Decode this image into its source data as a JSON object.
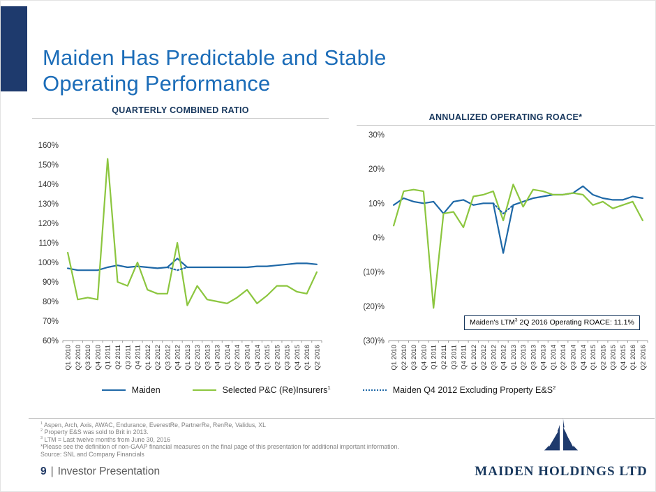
{
  "slide": {
    "title": "Maiden Has Predictable and Stable\nOperating Performance"
  },
  "chart_data": [
    {
      "type": "line",
      "title": "QUARTERLY COMBINED RATIO",
      "xlabel": "",
      "ylabel": "",
      "ylim": [
        60,
        160
      ],
      "grid": false,
      "legend_position": "shared-bottom",
      "categories": [
        "Q1 2010",
        "Q2 2010",
        "Q3 2010",
        "Q4 2010",
        "Q1 2011",
        "Q2 2011",
        "Q3 2011",
        "Q4 2011",
        "Q1 2012",
        "Q2 2012",
        "Q3 2012",
        "Q4 2012",
        "Q1 2013",
        "Q2 2013",
        "Q3 2013",
        "Q4 2013",
        "Q1 2014",
        "Q2 2014",
        "Q3 2014",
        "Q4 2014",
        "Q1 2015",
        "Q2 2015",
        "Q3 2015",
        "Q4 2015",
        "Q1 2016",
        "Q2 2016"
      ],
      "yticks": [
        {
          "v": 60,
          "label": "60%"
        },
        {
          "v": 70,
          "label": "70%"
        },
        {
          "v": 80,
          "label": "80%"
        },
        {
          "v": 90,
          "label": "90%"
        },
        {
          "v": 100,
          "label": "100%"
        },
        {
          "v": 110,
          "label": "110%"
        },
        {
          "v": 120,
          "label": "120%"
        },
        {
          "v": 130,
          "label": "130%"
        },
        {
          "v": 140,
          "label": "140%"
        },
        {
          "v": 150,
          "label": "150%"
        },
        {
          "v": 160,
          "label": "160%"
        }
      ],
      "series": [
        {
          "name": "Maiden",
          "color": "#1E68A7",
          "style": "solid",
          "values": [
            97,
            96,
            96,
            96,
            97.5,
            98.5,
            97.5,
            98,
            97.5,
            97,
            97.5,
            102,
            97.5,
            97.5,
            97.5,
            97.5,
            97.5,
            97.5,
            97.5,
            98,
            98,
            98.5,
            99,
            99.5,
            99.5,
            99
          ]
        },
        {
          "name": "Selected P&C (Re)Insurers",
          "color": "#8CC63F",
          "style": "solid",
          "values": [
            105,
            81,
            82,
            81,
            153,
            90,
            88,
            100,
            86,
            84,
            84,
            110,
            78,
            88,
            81,
            80,
            79,
            82,
            86,
            79,
            83,
            88,
            88,
            85,
            84,
            95
          ]
        },
        {
          "name": "Maiden Q4 2012 Excluding Property E&S",
          "color": "#1E68A7",
          "style": "dotted",
          "values": [
            null,
            null,
            null,
            null,
            null,
            null,
            null,
            null,
            null,
            null,
            97.5,
            96,
            97.5,
            null,
            null,
            null,
            null,
            null,
            null,
            null,
            null,
            null,
            null,
            null,
            null,
            null
          ]
        }
      ]
    },
    {
      "type": "line",
      "title": "ANNUALIZED OPERATING ROACE*",
      "xlabel": "",
      "ylabel": "",
      "ylim": [
        -30,
        30
      ],
      "grid": false,
      "legend_position": "shared-bottom",
      "categories": [
        "Q1 2010",
        "Q2 2010",
        "Q3 2010",
        "Q4 2010",
        "Q1 2011",
        "Q2 2011",
        "Q3 2011",
        "Q4 2011",
        "Q1 2012",
        "Q2 2012",
        "Q3 2012",
        "Q4 2012",
        "Q1 2013",
        "Q2 2013",
        "Q3 2013",
        "Q4 2013",
        "Q1 2014",
        "Q2 2014",
        "Q3 2014",
        "Q4 2014",
        "Q1 2015",
        "Q2 2015",
        "Q3 2015",
        "Q4 2015",
        "Q1 2016",
        "Q2 2016"
      ],
      "yticks": [
        {
          "v": -30,
          "label": "(30)%"
        },
        {
          "v": -20,
          "label": "(20)%"
        },
        {
          "v": -10,
          "label": "(10)%"
        },
        {
          "v": 0,
          "label": "0%"
        },
        {
          "v": 10,
          "label": "10%"
        },
        {
          "v": 20,
          "label": "20%"
        },
        {
          "v": 30,
          "label": "30%"
        }
      ],
      "series": [
        {
          "name": "Maiden",
          "color": "#1E68A7",
          "style": "solid",
          "values": [
            9.5,
            11.5,
            10.5,
            10,
            10.5,
            7,
            10.5,
            11,
            9.5,
            10,
            10,
            -4.5,
            9.5,
            10.5,
            11.5,
            12,
            12.5,
            12.5,
            13,
            15,
            12.5,
            11.5,
            11,
            11,
            12,
            11.5
          ]
        },
        {
          "name": "Selected P&C (Re)Insurers",
          "color": "#8CC63F",
          "style": "solid",
          "values": [
            3.5,
            13.5,
            14,
            13.5,
            -20.5,
            7,
            7.5,
            3,
            12,
            12.5,
            13.5,
            5,
            15.5,
            9,
            14,
            13.5,
            12.5,
            12.5,
            13,
            12.5,
            9.5,
            10.5,
            8.5,
            9.5,
            10.5,
            5
          ]
        },
        {
          "name": "Maiden Q4 2012 Excluding Property E&S",
          "color": "#1E68A7",
          "style": "dotted",
          "values": [
            null,
            null,
            null,
            null,
            null,
            null,
            null,
            null,
            null,
            null,
            10,
            7,
            9.5,
            null,
            null,
            null,
            null,
            null,
            null,
            null,
            null,
            null,
            null,
            null,
            null,
            null
          ]
        }
      ]
    }
  ],
  "annotation": {
    "prefix": "Maiden's LTM",
    "sup": "3",
    "suffix": " 2Q 2016 Operating ROACE: 11.1%"
  },
  "legend": {
    "items": [
      {
        "label": "Maiden",
        "sup": ""
      },
      {
        "label": "Selected P&C (Re)Insurers",
        "sup": "1"
      },
      {
        "label": "Maiden Q4 2012 Excluding Property E&S",
        "sup": "2"
      }
    ]
  },
  "footnotes": {
    "lines": [
      {
        "sup": "1",
        "text": " Aspen, Arch, Axis, AWAC, Endurance, EverestRe, PartnerRe, RenRe, Validus, XL"
      },
      {
        "sup": "2",
        "text": " Property E&S was sold to Brit in 2013."
      },
      {
        "sup": "3",
        "text": " LTM = Last twelve months from June 30, 2016"
      },
      {
        "sup": "",
        "text": "*Please see the definition of non-GAAP financial measures on the final page of this presentation for additional important information."
      },
      {
        "sup": "",
        "text": "Source: SNL and Company Financials"
      }
    ]
  },
  "footer": {
    "page_number": "9",
    "separator": "|",
    "label": "Investor Presentation"
  },
  "logo": {
    "text": "MAIDEN HOLDINGS LTD"
  },
  "colors": {
    "maiden_blue": "#1E68A7",
    "peers_green": "#8CC63F",
    "navy": "#17375D",
    "title_blue": "#1B6CB8"
  }
}
